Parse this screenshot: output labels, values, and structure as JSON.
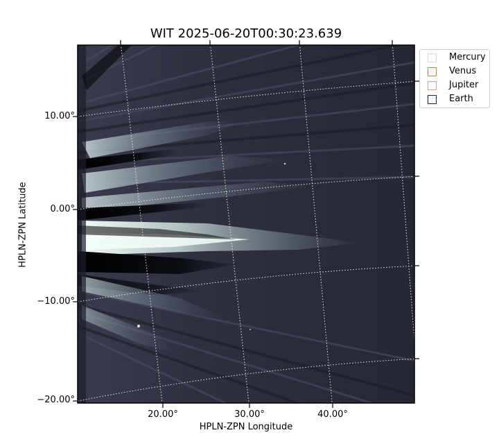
{
  "title": "WIT 2025-06-20T00:30:23.639",
  "xlabel": "HPLN-ZPN Longitude",
  "ylabel": "HPLN-ZPN Latitude",
  "x_ticks": [
    "20.00°",
    "30.00°",
    "40.00°"
  ],
  "y_ticks": [
    "10.00°",
    "0.00°",
    "−10.00°",
    "−20.00°"
  ],
  "legend": [
    {
      "label": "Mercury",
      "color": "#d8d8d8"
    },
    {
      "label": "Venus",
      "color": "#e07b39"
    },
    {
      "label": "Jupiter",
      "color": "#e8b020"
    },
    {
      "label": "Earth",
      "color": "#1a1a7a"
    }
  ],
  "colors": {
    "background": "#2a2b3a",
    "streamer_bright": "#e6f2ef",
    "grid": "#e8e8e8"
  }
}
